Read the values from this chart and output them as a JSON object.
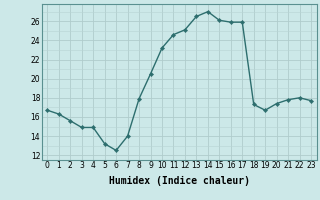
{
  "x": [
    0,
    1,
    2,
    3,
    4,
    5,
    6,
    7,
    8,
    9,
    10,
    11,
    12,
    13,
    14,
    15,
    16,
    17,
    18,
    19,
    20,
    21,
    22,
    23
  ],
  "y": [
    16.7,
    16.3,
    15.6,
    14.9,
    14.9,
    13.2,
    12.5,
    14.0,
    17.9,
    20.5,
    23.2,
    24.6,
    25.1,
    26.5,
    27.0,
    26.1,
    25.9,
    25.9,
    17.3,
    16.7,
    17.4,
    17.8,
    18.0,
    17.7
  ],
  "line_color": "#2d6e6e",
  "marker": "D",
  "marker_size": 2.2,
  "line_width": 1.0,
  "xlabel": "Humidex (Indice chaleur)",
  "xlim": [
    -0.5,
    23.5
  ],
  "ylim": [
    11.5,
    27.8
  ],
  "yticks": [
    12,
    14,
    16,
    18,
    20,
    22,
    24,
    26
  ],
  "xticks": [
    0,
    1,
    2,
    3,
    4,
    5,
    6,
    7,
    8,
    9,
    10,
    11,
    12,
    13,
    14,
    15,
    16,
    17,
    18,
    19,
    20,
    21,
    22,
    23
  ],
  "bg_color": "#cce8e8",
  "grid_major_color": "#b0cccc",
  "grid_minor_color": "#b8d4d4",
  "xlabel_fontsize": 7,
  "tick_fontsize": 5.5
}
